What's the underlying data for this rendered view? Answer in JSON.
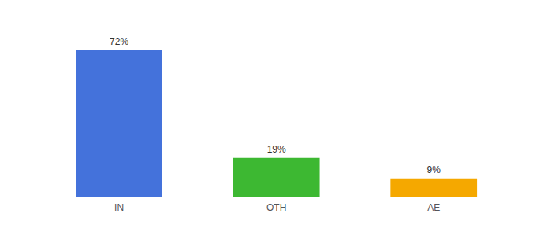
{
  "chart_data": {
    "type": "bar",
    "categories": [
      "IN",
      "OTH",
      "AE"
    ],
    "values": [
      72,
      19,
      9
    ],
    "value_labels": [
      "72%",
      "19%",
      "9%"
    ],
    "colors": [
      "#4472db",
      "#3db832",
      "#f5a800"
    ],
    "ylim": [
      0,
      85
    ],
    "data_labels": true,
    "tick_labels": "x",
    "grid": false
  }
}
